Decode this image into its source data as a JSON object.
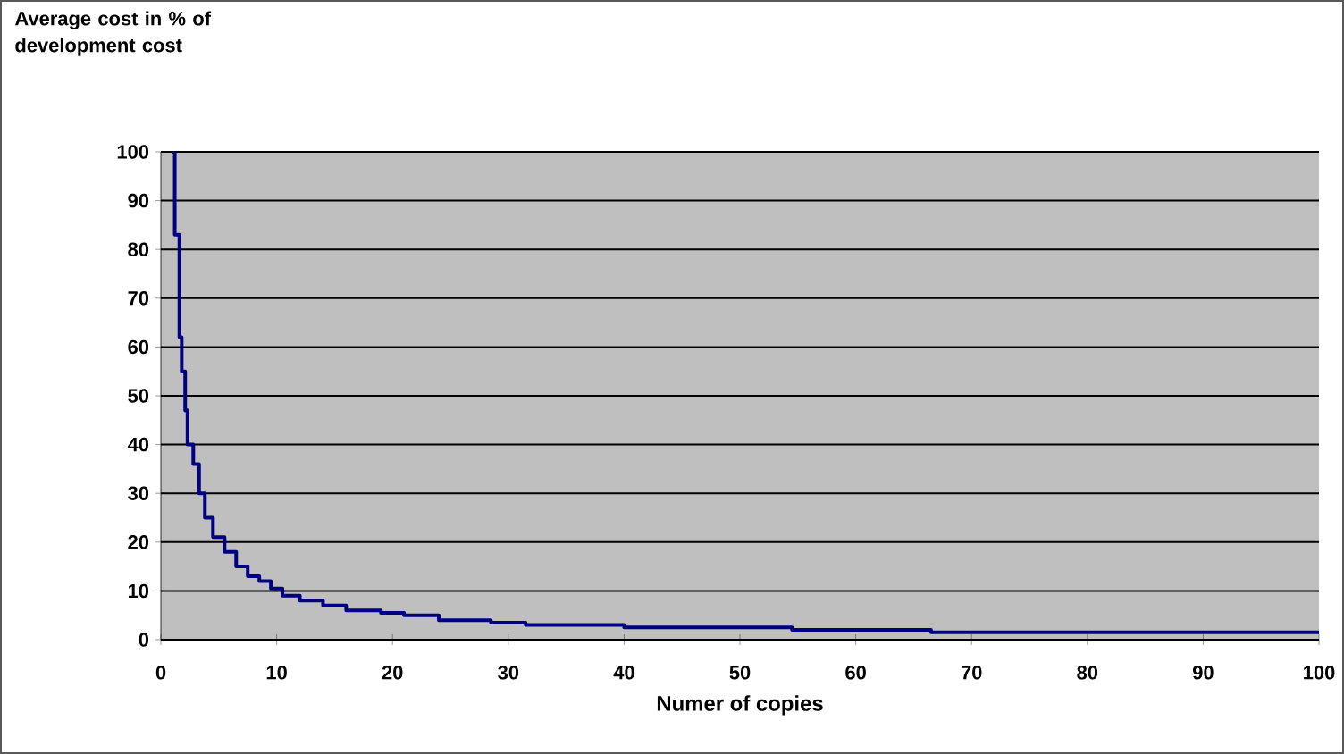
{
  "chart_data": {
    "type": "step",
    "ylabel": "Average cost in % of development cost",
    "xlabel": "Numer of copies",
    "x": [
      1,
      1.2,
      1.6,
      1.8,
      2.1,
      2.3,
      2.8,
      3.3,
      3.8,
      4.5,
      5.5,
      6.5,
      7.5,
      8.5,
      9.5,
      10.5,
      12,
      14,
      16,
      19,
      21,
      24,
      28.5,
      31.5,
      40,
      54.5,
      66.5,
      100
    ],
    "series": [
      {
        "color": "#000080",
        "values": [
          100,
          83,
          62,
          55,
          47,
          40,
          36,
          30,
          25,
          21,
          18,
          15,
          13,
          12,
          10.5,
          9,
          8,
          7,
          6,
          5.5,
          5,
          4,
          3.5,
          3,
          2.5,
          2,
          1.5,
          1.5
        ]
      }
    ],
    "xlim": [
      0,
      100
    ],
    "ylim": [
      0,
      100
    ],
    "xticks": [
      0,
      10,
      20,
      30,
      40,
      50,
      60,
      70,
      80,
      90,
      100
    ],
    "yticks": [
      0,
      10,
      20,
      30,
      40,
      50,
      60,
      70,
      80,
      90,
      100
    ],
    "grid": "y"
  }
}
